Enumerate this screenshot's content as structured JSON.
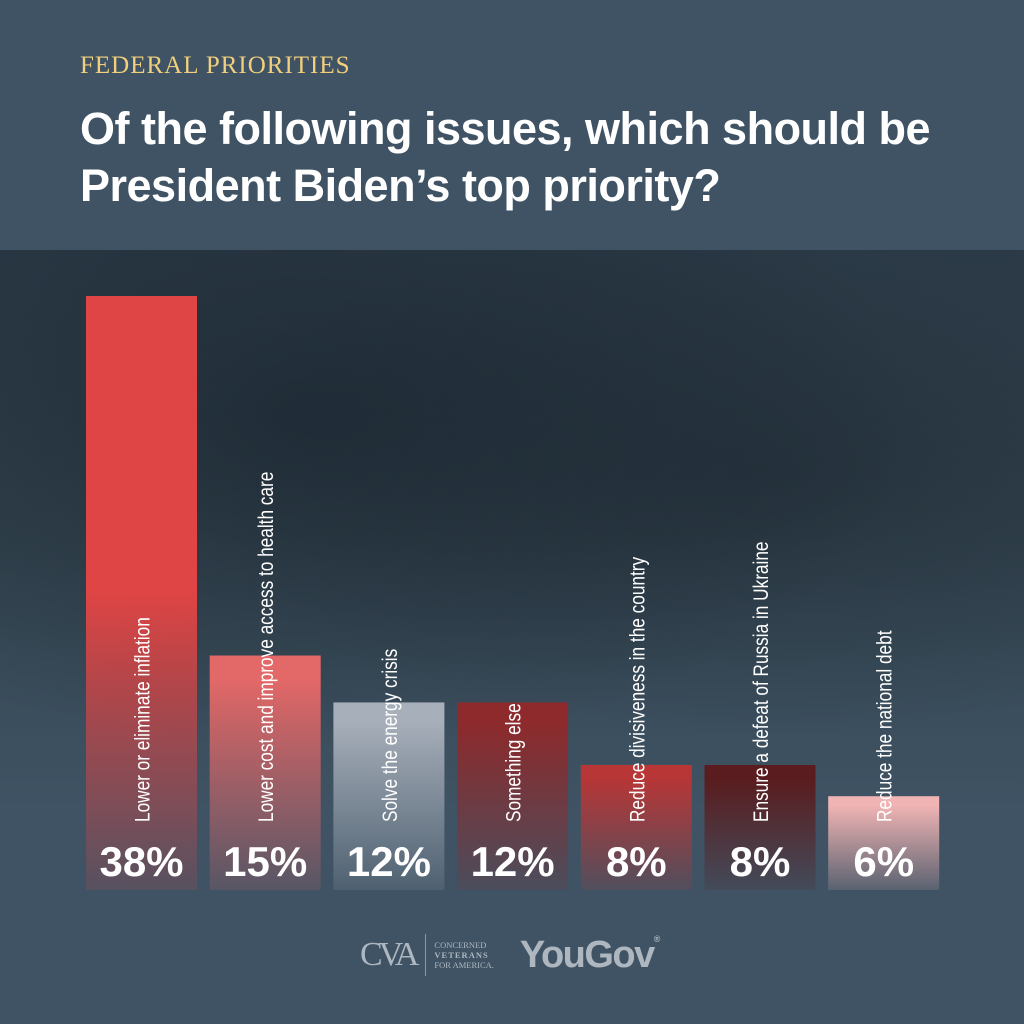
{
  "header": {
    "kicker": "FEDERAL PRIORITIES",
    "title": "Of the following issues, which should be President Biden’s top priority?"
  },
  "chart_data": {
    "type": "bar",
    "orientation": "vertical",
    "categories": [
      "Lower or eliminate inflation",
      "Lower cost and improve access to health care",
      "Solve the energy crisis",
      "Something else",
      "Reduce divisiveness in the country",
      "Ensure a defeat of Russia in Ukraine",
      "Reduce the national debt"
    ],
    "values": [
      38,
      15,
      12,
      12,
      8,
      8,
      6
    ],
    "value_labels": [
      "38%",
      "15%",
      "12%",
      "12%",
      "8%",
      "8%",
      "6%"
    ],
    "colors": [
      "#e04545",
      "#e36868",
      "#a7afba",
      "#8e2a2c",
      "#b83636",
      "#5a1c1e",
      "#f0b4b4"
    ],
    "unit": "%",
    "grid": false,
    "ylim": [
      0,
      38
    ]
  },
  "footer": {
    "logo1_mark": "CVA",
    "logo1_lines": [
      "CONCERNED",
      "VETERANS",
      "FOR AMERICA."
    ],
    "logo2": "YouGov",
    "logo2_reg": "®"
  }
}
